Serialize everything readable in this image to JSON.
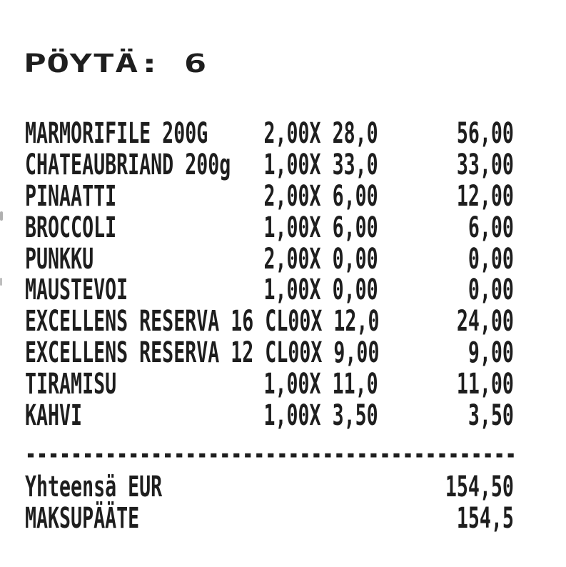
{
  "receipt": {
    "table_header": "PÖYTÄ: 6",
    "items": [
      {
        "name": "MARMORIFILE 200G",
        "qty": "2,00X",
        "unit_price": "28,0",
        "amount": "56,00"
      },
      {
        "name": "CHATEAUBRIAND 200g",
        "qty": "1,00X",
        "unit_price": "33,0",
        "amount": "33,00"
      },
      {
        "name": "PINAATTI",
        "qty": "2,00X",
        "unit_price": "6,00",
        "amount": "12,00"
      },
      {
        "name": "BROCCOLI",
        "qty": "1,00X",
        "unit_price": "6,00",
        "amount": "6,00"
      },
      {
        "name": "PUNKKU",
        "qty": "2,00X",
        "unit_price": "0,00",
        "amount": "0,00"
      },
      {
        "name": "MAUSTEVOI",
        "qty": "1,00X",
        "unit_price": "0,00",
        "amount": "0,00"
      },
      {
        "name": "EXCELLENS RESERVA 16 CL",
        "qty": "00X",
        "unit_price": "12,0",
        "amount": "24,00"
      },
      {
        "name": "EXCELLENS RESERVA 12 CL",
        "qty": "00X",
        "unit_price": "9,00",
        "amount": "9,00"
      },
      {
        "name": "TIRAMISU",
        "qty": "1,00X",
        "unit_price": "11,0",
        "amount": "11,00"
      },
      {
        "name": "KAHVI",
        "qty": "1,00X",
        "unit_price": "3,50",
        "amount": "3,50"
      }
    ],
    "separator": "-------------------------------------------",
    "totals": [
      {
        "label": "Yhteensä EUR",
        "amount": "154,50"
      },
      {
        "label": "MAKSUPÄÄTE",
        "amount": "154,5"
      }
    ],
    "colors": {
      "paper": "#ffffff",
      "ink": "#1e1e1e"
    }
  }
}
